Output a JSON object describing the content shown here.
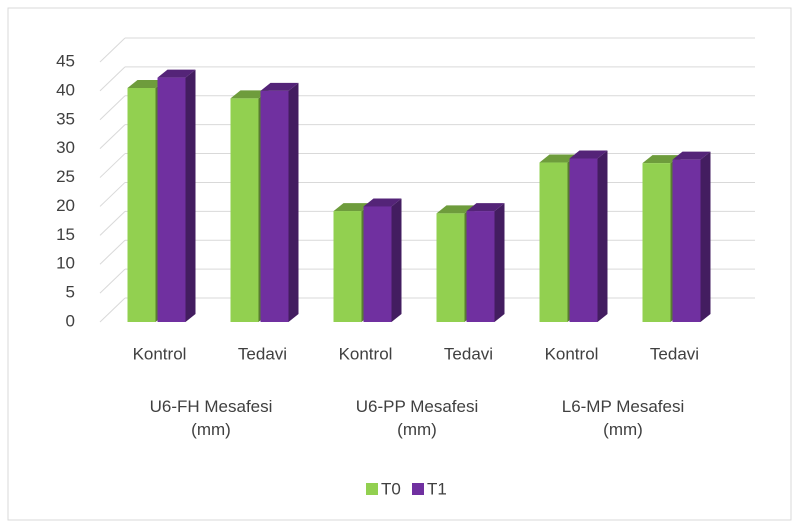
{
  "chart_data": {
    "type": "bar3d",
    "categories": [
      "Kontrol",
      "Tedavi",
      "Kontrol",
      "Tedavi",
      "Kontrol",
      "Tedavi"
    ],
    "groups": [
      "U6-FH Mesafesi (mm)",
      "U6-PP Mesafesi (mm)",
      "L6-MP Mesafesi (mm)"
    ],
    "series": [
      {
        "name": "T0",
        "color": "#92d050",
        "values": [
          40.5,
          38.7,
          19.2,
          18.8,
          27.6,
          27.5
        ]
      },
      {
        "name": "T1",
        "color": "#7030a0",
        "values": [
          42.3,
          40.0,
          20.0,
          19.2,
          28.3,
          28.1
        ]
      }
    ],
    "ylim": [
      0,
      45
    ],
    "yticks": [
      0,
      5,
      10,
      15,
      20,
      25,
      30,
      35,
      40,
      45
    ],
    "grid": true,
    "legend": "bottom"
  }
}
